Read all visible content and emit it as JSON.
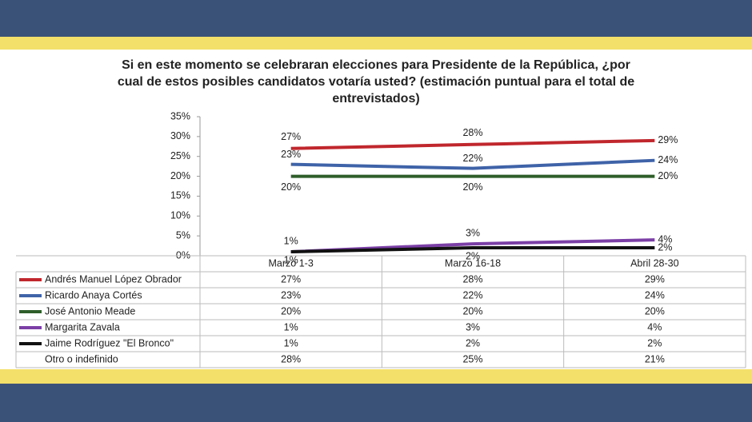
{
  "chart_data": {
    "type": "line",
    "title_lines": [
      "Si en este momento se celebraran elecciones para Presidente de la República, ¿por",
      "cual de estos posibles candidatos votaría usted? (estimación puntual para el total de",
      "entrevistados)"
    ],
    "categories": [
      "Marzo 1-3",
      "Marzo 16-18",
      "Abril 28-30"
    ],
    "ylim": [
      0,
      35
    ],
    "yticks": [
      {
        "value": 0,
        "label": "0%"
      },
      {
        "value": 5,
        "label": "5%"
      },
      {
        "value": 10,
        "label": "10%"
      },
      {
        "value": 15,
        "label": "15%"
      },
      {
        "value": 20,
        "label": "20%"
      },
      {
        "value": 25,
        "label": "25%"
      },
      {
        "value": 30,
        "label": "30%"
      },
      {
        "value": 35,
        "label": "35%"
      }
    ],
    "series": [
      {
        "name": "Andrés Manuel López Obrador",
        "color": "#c0272d",
        "values": [
          27,
          28,
          29
        ],
        "value_labels": [
          "27%",
          "28%",
          "29%"
        ]
      },
      {
        "name": "Ricardo Anaya Cortés",
        "color": "#3f63a8",
        "values": [
          23,
          22,
          24
        ],
        "value_labels": [
          "23%",
          "22%",
          "24%"
        ]
      },
      {
        "name": "José Antonio Meade",
        "color": "#2e5e2a",
        "values": [
          20,
          20,
          20
        ],
        "value_labels": [
          "20%",
          "20%",
          "20%"
        ]
      },
      {
        "name": "Margarita Zavala",
        "color": "#7b3fa6",
        "values": [
          1,
          3,
          4
        ],
        "value_labels": [
          "1%",
          "3%",
          "4%"
        ]
      },
      {
        "name": "Jaime Rodríguez \"El Bronco\"",
        "color": "#111111",
        "values": [
          1,
          2,
          2
        ],
        "value_labels": [
          "1%",
          "2%",
          "2%"
        ]
      },
      {
        "name": "Otro o indefinido",
        "values": [
          28,
          25,
          21
        ],
        "value_labels": [
          "28%",
          "25%",
          "21%"
        ]
      }
    ]
  }
}
